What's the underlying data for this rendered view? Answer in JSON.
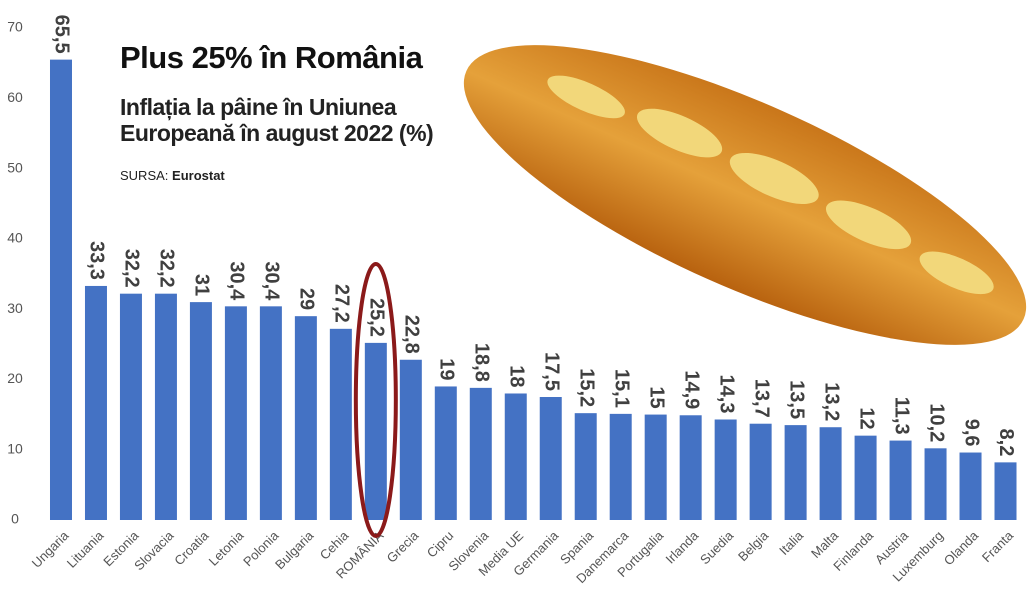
{
  "chart_data": {
    "type": "bar",
    "title": "Plus 25% în România",
    "subtitle": "Inflația la pâine în Uniunea Europeană în august 2022 (%)",
    "source_label": "SURSA:",
    "source": "Eurostat",
    "categories": [
      "Ungaria",
      "Lituania",
      "Estonia",
      "Slovacia",
      "Croatia",
      "Letonia",
      "Polonia",
      "Bulgaria",
      "Cehia",
      "ROMÂNIA",
      "Grecia",
      "Cipru",
      "Slovenia",
      "Media UE",
      "Germania",
      "Spania",
      "Danemarca",
      "Portugalia",
      "Irlanda",
      "Suedia",
      "Belgia",
      "Italia",
      "Malta",
      "Finlanda",
      "Austria",
      "Luxemburg",
      "Olanda",
      "Franta"
    ],
    "values": [
      65.5,
      33.3,
      32.2,
      32.2,
      31,
      30.4,
      30.4,
      29,
      27.2,
      25.2,
      22.8,
      19,
      18.8,
      18,
      17.5,
      15.2,
      15.1,
      15,
      14.9,
      14.3,
      13.7,
      13.5,
      13.2,
      12,
      11.3,
      10.2,
      9.6,
      8.2
    ],
    "value_labels": [
      "65,5",
      "33,3",
      "32,2",
      "32,2",
      "31",
      "30,4",
      "30,4",
      "29",
      "27,2",
      "25,2",
      "22,8",
      "19",
      "18,8",
      "18",
      "17,5",
      "15,2",
      "15,1",
      "15",
      "14,9",
      "14,3",
      "13,7",
      "13,5",
      "13,2",
      "12",
      "11,3",
      "10,2",
      "9,6",
      "8,2"
    ],
    "color": "#4472c4",
    "highlight": {
      "category": "ROMÂNIA",
      "color": "#8b1a1a"
    },
    "ylim": [
      0,
      70
    ],
    "yticks": [
      0,
      10,
      20,
      30,
      40,
      50,
      60,
      70
    ],
    "grid": false
  }
}
